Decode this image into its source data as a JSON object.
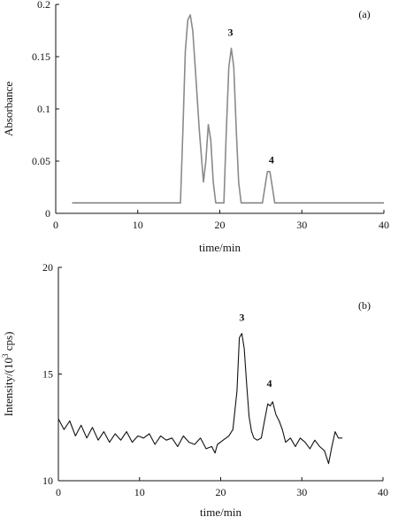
{
  "chart_data": [
    {
      "type": "line",
      "panel_label": "(a)",
      "xlabel": "time/min",
      "ylabel": "Absorbance",
      "xlim": [
        0,
        40
      ],
      "ylim": [
        0,
        0.2
      ],
      "x_ticks": [
        0,
        10,
        20,
        30,
        40
      ],
      "y_ticks": [
        0,
        0.05,
        0.1,
        0.15,
        0.2
      ],
      "y_tick_labels": [
        "0",
        "0.05",
        "0.1",
        "0.15",
        "0.2"
      ],
      "series": [
        {
          "color": "#8a8a8a",
          "x": [
            2,
            15.2,
            15.5,
            15.8,
            16.1,
            16.4,
            16.7,
            17.0,
            17.5,
            18.0,
            18.3,
            18.6,
            18.9,
            19.2,
            19.5,
            20.5,
            20.8,
            21.1,
            21.4,
            21.7,
            22.0,
            22.3,
            22.6,
            25.2,
            25.5,
            25.8,
            26.1,
            26.4,
            26.7,
            27.0,
            40
          ],
          "y": [
            0.01,
            0.01,
            0.08,
            0.155,
            0.185,
            0.19,
            0.175,
            0.14,
            0.08,
            0.03,
            0.05,
            0.085,
            0.07,
            0.03,
            0.01,
            0.01,
            0.08,
            0.14,
            0.158,
            0.14,
            0.08,
            0.03,
            0.01,
            0.01,
            0.025,
            0.04,
            0.04,
            0.025,
            0.01,
            0.01,
            0.01
          ]
        }
      ],
      "annotations": [
        {
          "text": "3",
          "x": 21.3,
          "y": 0.17
        },
        {
          "text": "4",
          "x": 26.3,
          "y": 0.048
        }
      ]
    },
    {
      "type": "line",
      "panel_label": "(b)",
      "xlabel": "time/min",
      "ylabel": "Intensity/(10",
      "ylabel_superscript": "3",
      "ylabel_suffix": " cps)",
      "xlim": [
        0,
        40
      ],
      "ylim": [
        10,
        20
      ],
      "x_ticks": [
        0,
        10,
        20,
        30,
        40
      ],
      "y_ticks": [
        10,
        15,
        20
      ],
      "y_tick_labels": [
        "10",
        "15",
        "20"
      ],
      "series": [
        {
          "color": "#111111",
          "x": [
            0,
            0.7,
            1.4,
            2.1,
            2.8,
            3.5,
            4.2,
            4.9,
            5.6,
            6.3,
            7.0,
            7.7,
            8.4,
            9.1,
            9.8,
            10.5,
            11.2,
            11.9,
            12.6,
            13.3,
            14.0,
            14.7,
            15.4,
            16.1,
            16.8,
            17.5,
            18.2,
            18.9,
            19.3,
            19.6,
            20.3,
            21.0,
            21.5,
            22.0,
            22.3,
            22.6,
            22.9,
            23.2,
            23.5,
            23.8,
            24.1,
            24.5,
            25.0,
            25.4,
            25.8,
            26.1,
            26.4,
            26.8,
            27.2,
            27.6,
            28.0,
            28.6,
            29.2,
            29.8,
            30.4,
            31.0,
            31.6,
            32.2,
            32.8,
            33.3,
            33.7,
            34.1,
            34.5,
            35.0
          ],
          "y": [
            12.9,
            12.4,
            12.8,
            12.1,
            12.6,
            12.0,
            12.5,
            11.9,
            12.3,
            11.8,
            12.2,
            11.9,
            12.3,
            11.8,
            12.1,
            12.0,
            12.2,
            11.7,
            12.1,
            11.9,
            12.0,
            11.6,
            12.1,
            11.8,
            11.7,
            12.0,
            11.5,
            11.6,
            11.3,
            11.7,
            11.9,
            12.1,
            12.4,
            14.2,
            16.7,
            16.9,
            16.2,
            14.5,
            13.0,
            12.3,
            12.0,
            11.9,
            12.0,
            12.8,
            13.6,
            13.5,
            13.7,
            13.1,
            12.8,
            12.4,
            11.8,
            12.0,
            11.6,
            12.0,
            11.8,
            11.5,
            11.9,
            11.6,
            11.4,
            10.8,
            11.6,
            12.3,
            12.0,
            12.0
          ]
        }
      ],
      "annotations": [
        {
          "text": "3",
          "x": 22.6,
          "y": 17.5
        },
        {
          "text": "4",
          "x": 26.0,
          "y": 14.4
        }
      ]
    }
  ]
}
